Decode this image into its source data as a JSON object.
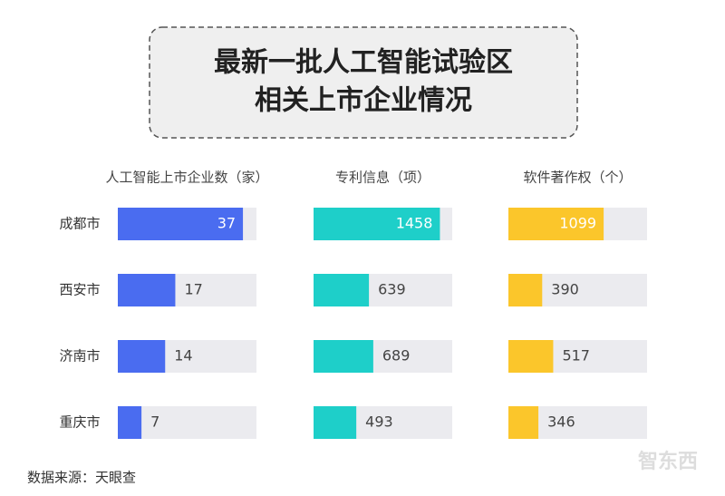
{
  "header": {
    "title": [
      "最新一批人工智能试验区",
      "相关上市企业情况"
    ]
  },
  "chart_data": [
    {
      "type": "bar",
      "orientation": "horizontal",
      "title": "人工智能上市企业数（家）",
      "categories": [
        "成都市",
        "西安市",
        "济南市",
        "重庆市"
      ],
      "values": [
        37,
        17,
        14,
        7
      ],
      "color": "#4a6cf0",
      "xlim": [
        0,
        41
      ]
    },
    {
      "type": "bar",
      "orientation": "horizontal",
      "title": "专利信息（项）",
      "values": [
        1458,
        639,
        689,
        493
      ],
      "color": "#1ecfc9",
      "xlim": [
        0,
        1600
      ]
    },
    {
      "type": "bar",
      "orientation": "horizontal",
      "title": "软件著作权（个）",
      "values": [
        1099,
        390,
        517,
        346
      ],
      "color": "#fbc62b",
      "xlim": [
        0,
        1600
      ]
    }
  ],
  "source": "数据来源：天眼查",
  "watermark": "智东西"
}
